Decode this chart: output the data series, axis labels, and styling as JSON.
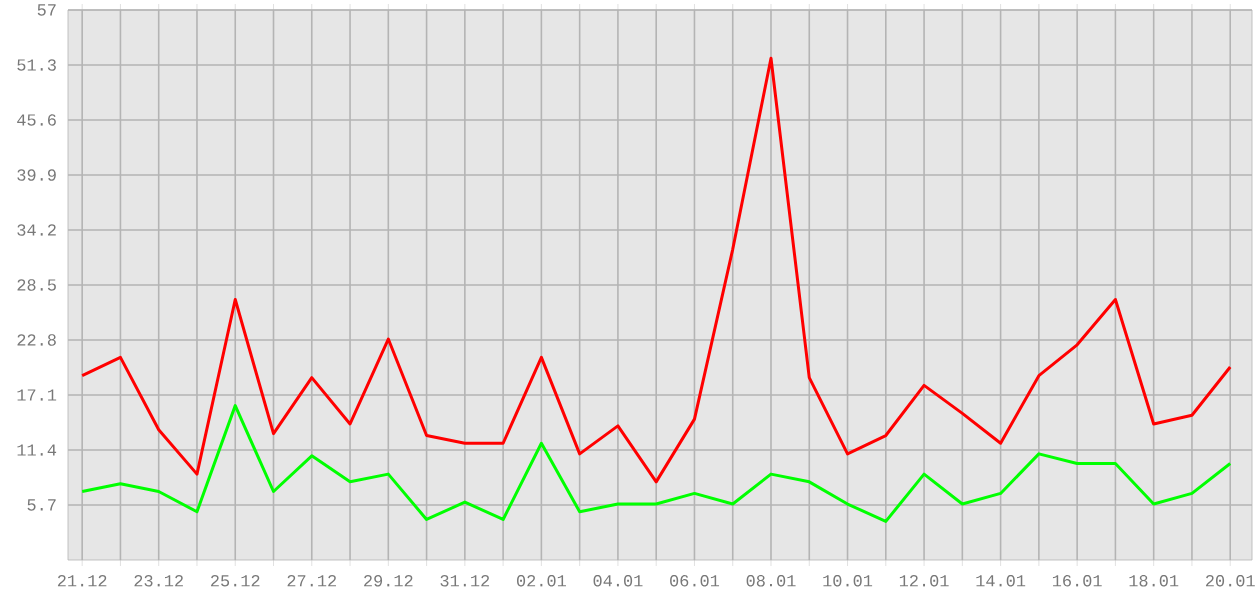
{
  "chart_data": {
    "type": "line",
    "categories": [
      "21.12",
      null,
      "23.12",
      null,
      "25.12",
      null,
      "27.12",
      null,
      "29.12",
      null,
      "31.12",
      null,
      "02.01",
      null,
      "04.01",
      null,
      "06.01",
      null,
      "08.01",
      null,
      "10.01",
      null,
      "12.01",
      null,
      "14.01",
      null,
      "16.01",
      null,
      "18.01",
      null,
      "20.01"
    ],
    "series": [
      {
        "color": "#ff0000",
        "values": [
          19.1,
          21.0,
          13.5,
          8.9,
          27.0,
          13.1,
          18.9,
          14.1,
          22.9,
          12.9,
          12.1,
          12.1,
          21.0,
          11.0,
          13.9,
          8.1,
          14.6,
          32.2,
          52.0,
          18.9,
          11.0,
          12.9,
          18.1,
          15.2,
          12.1,
          19.1,
          22.3,
          27.0,
          14.1,
          15.0,
          20.0
        ]
      },
      {
        "color": "#00ff00",
        "values": [
          7.1,
          7.9,
          7.1,
          5.0,
          16.0,
          7.1,
          10.8,
          8.1,
          8.9,
          4.2,
          6.0,
          4.2,
          12.1,
          5.0,
          5.8,
          5.8,
          6.9,
          5.8,
          8.9,
          8.1,
          5.8,
          4.0,
          8.9,
          5.8,
          6.9,
          11.0,
          10.0,
          10.0,
          5.8,
          6.9,
          10.0
        ]
      }
    ],
    "ylim": [
      0,
      57
    ],
    "yticks": [
      5.7,
      11.4,
      17.1,
      22.8,
      28.5,
      34.2,
      39.9,
      45.6,
      51.3,
      57
    ],
    "grid": true,
    "marker": "none",
    "line_style": "solid"
  }
}
